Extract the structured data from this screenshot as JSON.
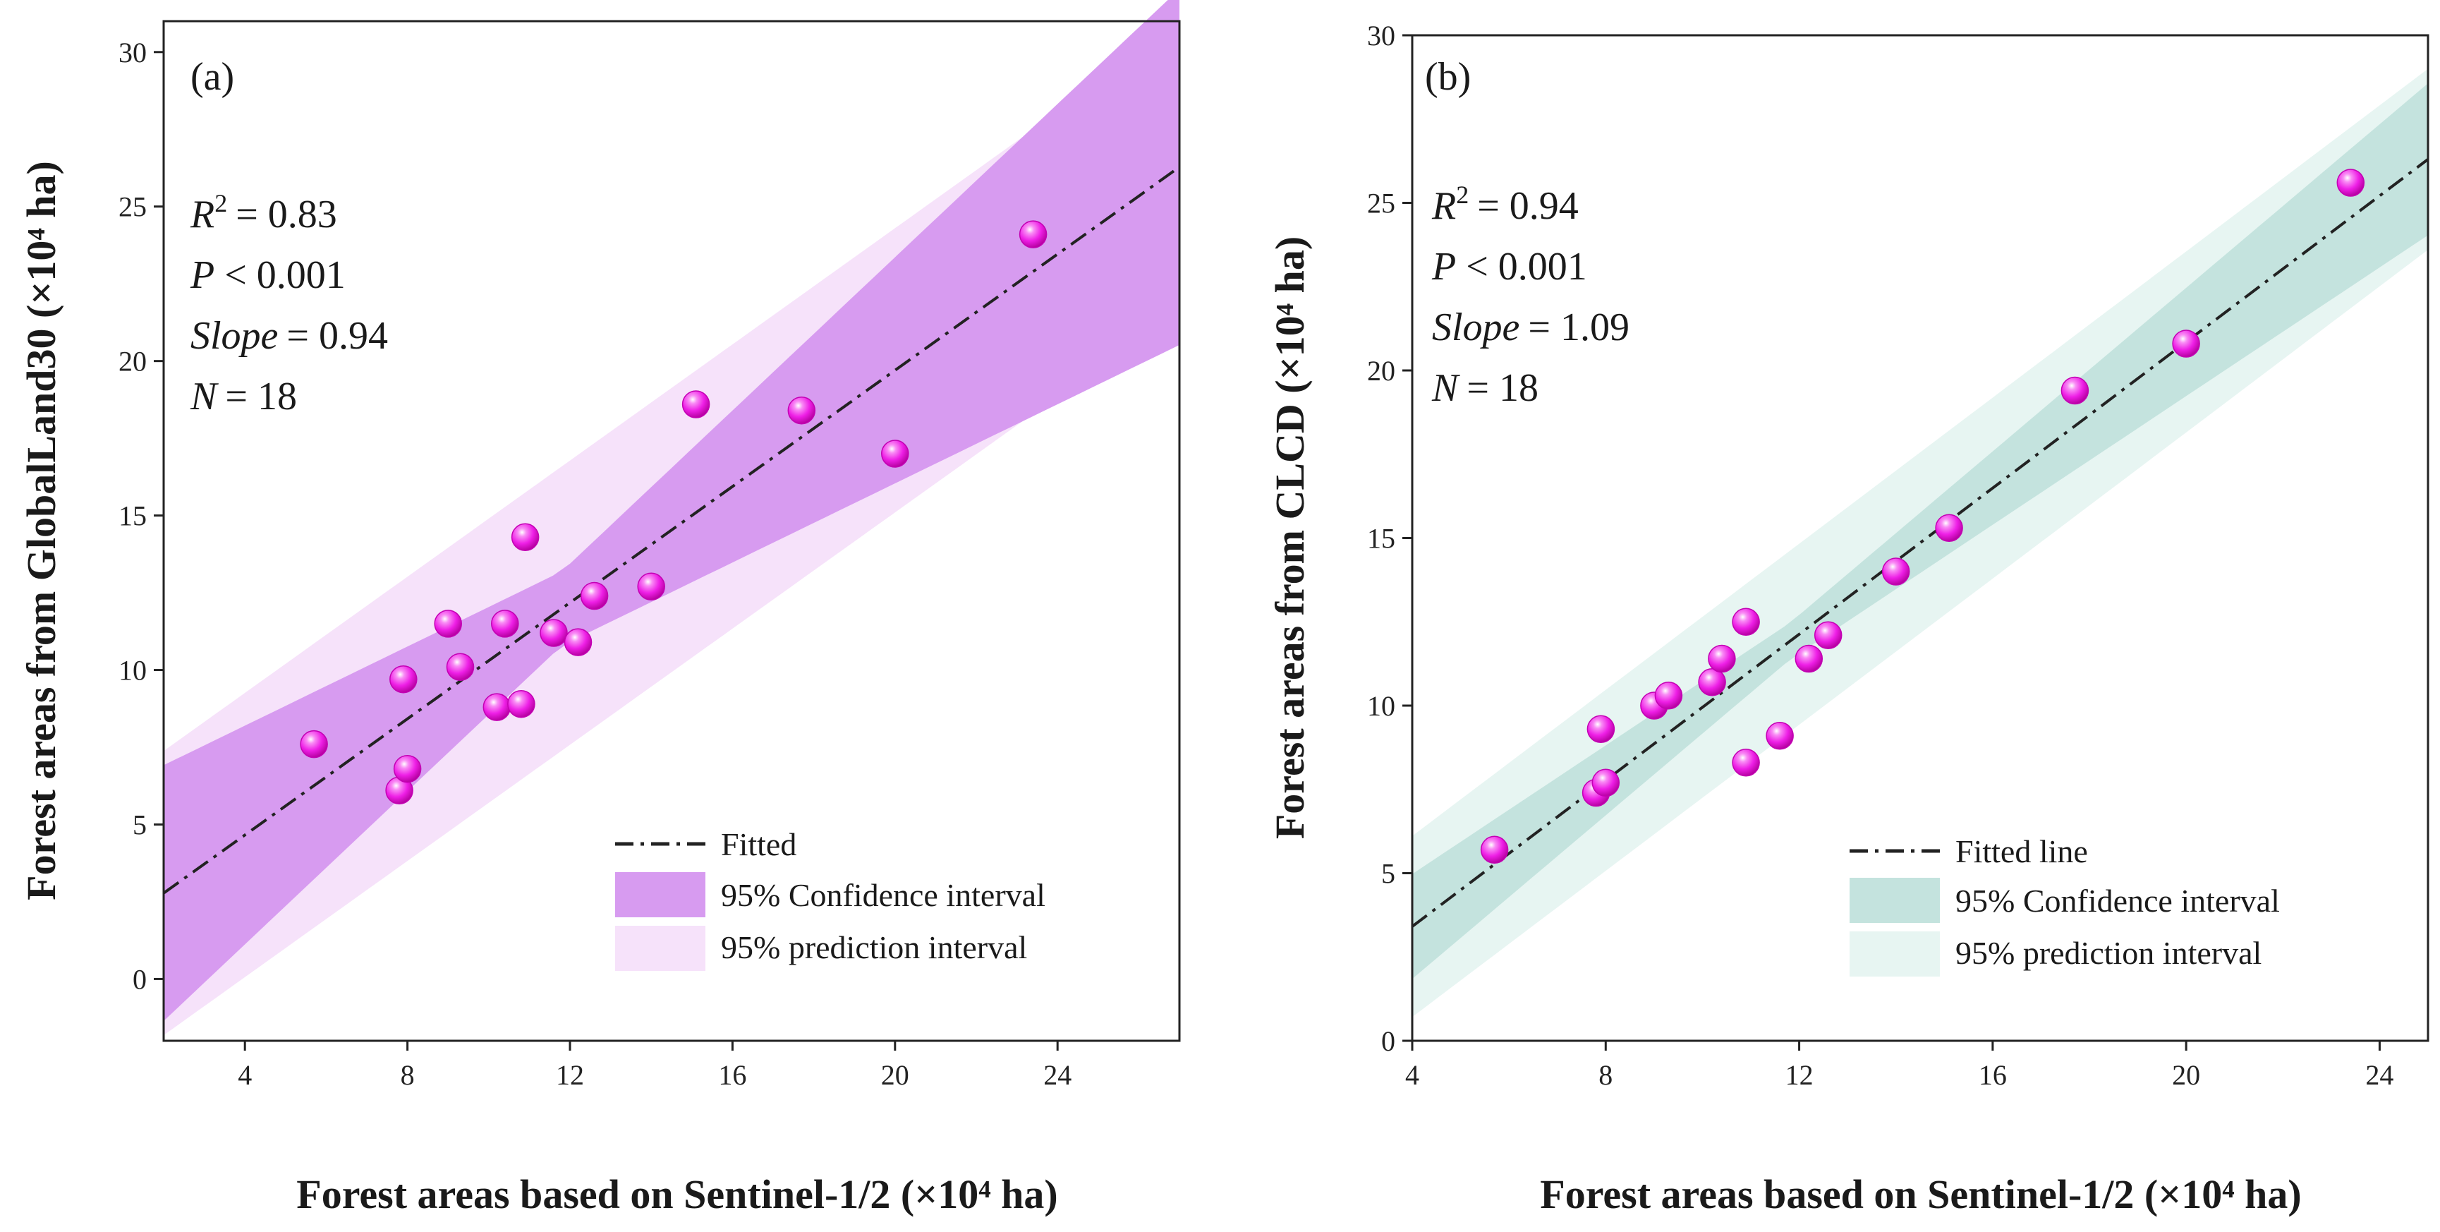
{
  "chart_data": [
    {
      "type": "scatter",
      "panel_label": "(a)",
      "xlabel": "Forest areas based on Sentinel-1/2 (×10⁴ ha)",
      "ylabel": "Forest areas from GlobalLand30 (×10⁴ ha)",
      "xlim": [
        2,
        27
      ],
      "ylim": [
        -2,
        31
      ],
      "xticks": [
        4,
        8,
        12,
        16,
        20,
        24
      ],
      "yticks": [
        0,
        5,
        10,
        15,
        20,
        25,
        30
      ],
      "stats": {
        "r2_symbol": "R",
        "r2_exp": "2",
        "r2_value": "= 0.83",
        "p_symbol": "P",
        "p_value": "< 0.001",
        "slope_symbol": "Slope",
        "slope_value": "= 0.94",
        "n_symbol": "N",
        "n_value": "= 18"
      },
      "fit": {
        "slope": 0.94,
        "intercept": 0.9
      },
      "ci_halfwidth": {
        "center_x": 11.8,
        "min": 1.2,
        "growth": 0.3
      },
      "pi_halfwidth": 4.6,
      "points": [
        {
          "x": 5.7,
          "y": 7.6
        },
        {
          "x": 7.8,
          "y": 6.1
        },
        {
          "x": 8.0,
          "y": 6.8
        },
        {
          "x": 7.9,
          "y": 9.7
        },
        {
          "x": 9.0,
          "y": 11.5
        },
        {
          "x": 9.3,
          "y": 10.1
        },
        {
          "x": 10.2,
          "y": 8.8
        },
        {
          "x": 10.8,
          "y": 8.9
        },
        {
          "x": 10.4,
          "y": 11.5
        },
        {
          "x": 10.9,
          "y": 14.3
        },
        {
          "x": 11.6,
          "y": 11.2
        },
        {
          "x": 12.2,
          "y": 10.9
        },
        {
          "x": 12.6,
          "y": 12.4
        },
        {
          "x": 14.0,
          "y": 12.7
        },
        {
          "x": 15.1,
          "y": 18.6
        },
        {
          "x": 17.7,
          "y": 18.4
        },
        {
          "x": 20.0,
          "y": 17.0
        },
        {
          "x": 23.4,
          "y": 24.1
        }
      ],
      "legend": {
        "fitted": "Fitted",
        "confidence": "95% Confidence interval",
        "prediction": "95% prediction interval"
      },
      "colors": {
        "ci": "#d79bf0",
        "pi": "#f6e2fa",
        "point": "#ee1fe6",
        "line": "#222222"
      }
    },
    {
      "type": "scatter",
      "panel_label": "(b)",
      "xlabel": "Forest areas based on Sentinel-1/2 (×10⁴ ha)",
      "ylabel": "Forest areas from CLCD (×10⁴ ha)",
      "xlim": [
        4,
        25
      ],
      "ylim": [
        0,
        30
      ],
      "xticks": [
        4,
        8,
        12,
        16,
        20,
        24
      ],
      "yticks": [
        0,
        5,
        10,
        15,
        20,
        25,
        30
      ],
      "stats": {
        "r2_symbol": "R",
        "r2_exp": "2",
        "r2_value": "= 0.94",
        "p_symbol": "P",
        "p_value": "< 0.001",
        "slope_symbol": "Slope",
        "slope_value": "= 1.09",
        "n_symbol": "N",
        "n_value": "= 18"
      },
      "fit": {
        "slope": 1.09,
        "intercept": -0.95
      },
      "ci_halfwidth": {
        "center_x": 11.8,
        "min": 0.55,
        "growth": 0.13
      },
      "pi_halfwidth": 2.7,
      "points": [
        {
          "x": 5.7,
          "y": 5.7
        },
        {
          "x": 7.8,
          "y": 7.4
        },
        {
          "x": 7.9,
          "y": 9.3
        },
        {
          "x": 8.0,
          "y": 7.7
        },
        {
          "x": 9.0,
          "y": 10.0
        },
        {
          "x": 9.3,
          "y": 10.3
        },
        {
          "x": 10.2,
          "y": 10.7
        },
        {
          "x": 10.4,
          "y": 11.4
        },
        {
          "x": 10.9,
          "y": 8.3
        },
        {
          "x": 10.9,
          "y": 12.5
        },
        {
          "x": 11.6,
          "y": 9.1
        },
        {
          "x": 12.2,
          "y": 11.4
        },
        {
          "x": 12.6,
          "y": 12.1
        },
        {
          "x": 14.0,
          "y": 14.0
        },
        {
          "x": 15.1,
          "y": 15.3
        },
        {
          "x": 17.7,
          "y": 19.4
        },
        {
          "x": 20.0,
          "y": 20.8
        },
        {
          "x": 23.4,
          "y": 25.6
        }
      ],
      "legend": {
        "fitted": "Fitted line",
        "confidence": "95% Confidence interval",
        "prediction": "95% prediction interval"
      },
      "colors": {
        "ci": "#c4e3de",
        "pi": "#e7f5f2",
        "point": "#ee1fe6",
        "line": "#222222"
      }
    }
  ]
}
